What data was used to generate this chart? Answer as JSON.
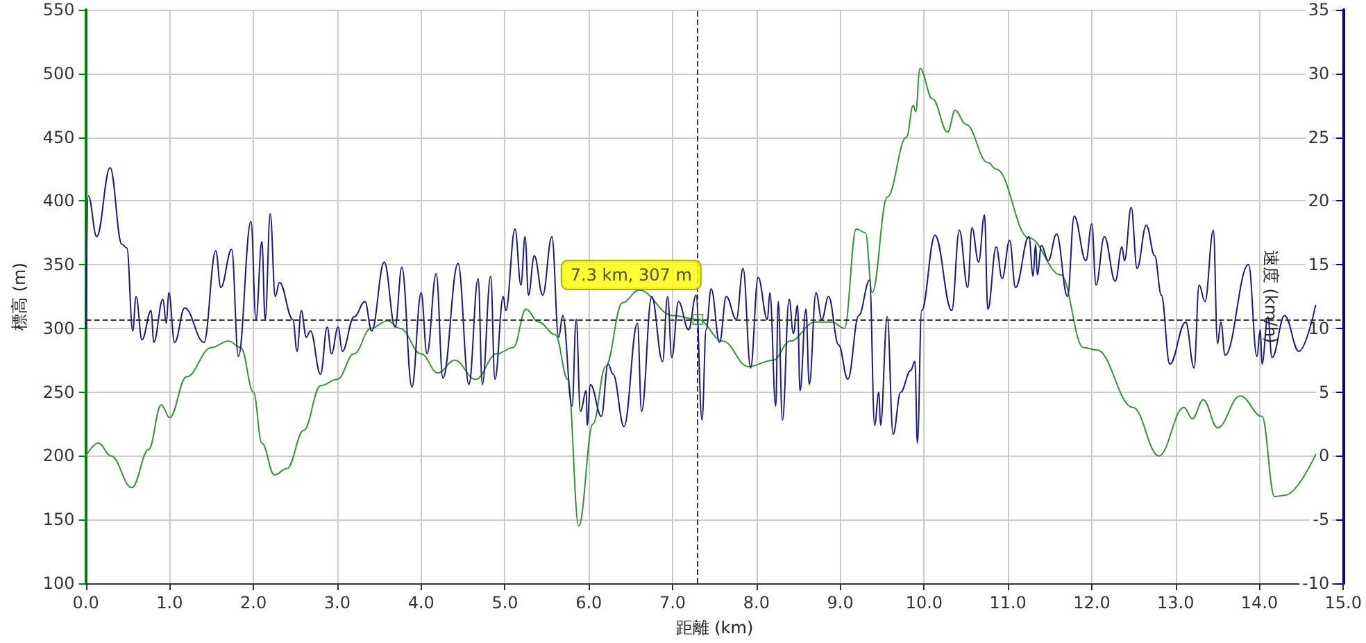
{
  "chart_data": {
    "type": "line",
    "xlabel": "距離 (km)",
    "ylabel": "標高 (m)",
    "y2label": "速度 (km/h)",
    "xlim": [
      0,
      15
    ],
    "xticks": [
      {
        "value": 0,
        "label": "0.0"
      },
      {
        "value": 1,
        "label": "1.0"
      },
      {
        "value": 2,
        "label": "2.0"
      },
      {
        "value": 3,
        "label": "3.0"
      },
      {
        "value": 4,
        "label": "4.0"
      },
      {
        "value": 5,
        "label": "5.0"
      },
      {
        "value": 6,
        "label": "6.0"
      },
      {
        "value": 7,
        "label": "7.0"
      },
      {
        "value": 8,
        "label": "8.0"
      },
      {
        "value": 9,
        "label": "9.0"
      },
      {
        "value": 10,
        "label": "10.0"
      },
      {
        "value": 11,
        "label": "11.0"
      },
      {
        "value": 12,
        "label": "12.0"
      },
      {
        "value": 13,
        "label": "13.0"
      },
      {
        "value": 14,
        "label": "14.0"
      },
      {
        "value": 15,
        "label": "15.0"
      }
    ],
    "ylim": [
      100,
      550
    ],
    "yticks": [
      100,
      150,
      200,
      250,
      300,
      350,
      400,
      450,
      500,
      550
    ],
    "y2lim": [
      -10,
      35
    ],
    "y2ticks": [
      -10,
      -5,
      0,
      5,
      10,
      15,
      20,
      25,
      30,
      35
    ],
    "grid": true,
    "marker": "none",
    "line_style": "solid",
    "ref_lines": [
      {
        "axis": "x",
        "value": 7.3,
        "color": "#333333",
        "line_style": "dashed"
      },
      {
        "axis": "y",
        "value": 307,
        "color": "#333333",
        "line_style": "dashed"
      }
    ],
    "annotations": [
      {
        "text": "7.3 km, 307 m",
        "x": 7.3,
        "y": 307
      }
    ],
    "series": [
      {
        "color": "#3d8f3d",
        "x": [
          0,
          0.15,
          0.3,
          0.55,
          0.75,
          0.9,
          1.0,
          1.2,
          1.5,
          1.7,
          1.85,
          2.0,
          2.1,
          2.25,
          2.4,
          2.6,
          2.8,
          3.0,
          3.2,
          3.4,
          3.6,
          3.75,
          4.0,
          4.2,
          4.4,
          4.65,
          4.9,
          5.1,
          5.25,
          5.4,
          5.6,
          5.75,
          5.88,
          6.05,
          6.2,
          6.4,
          6.6,
          7.0,
          7.3,
          7.6,
          7.9,
          8.2,
          8.4,
          8.7,
          8.9,
          9.05,
          9.19,
          9.3,
          9.38,
          9.56,
          9.79,
          9.87,
          9.9,
          9.95,
          10.1,
          10.28,
          10.37,
          10.5,
          10.76,
          10.86,
          11.25,
          11.63,
          11.9,
          12.06,
          12.49,
          12.8,
          13.1,
          13.2,
          13.33,
          13.5,
          13.77,
          14.03,
          14.18,
          14.3,
          14.67
        ],
        "values": [
          200,
          210,
          200,
          175,
          205,
          240,
          230,
          262,
          285,
          290,
          285,
          250,
          210,
          185,
          190,
          220,
          255,
          260,
          280,
          300,
          306,
          300,
          280,
          265,
          275,
          260,
          280,
          285,
          315,
          305,
          295,
          260,
          145,
          225,
          270,
          320,
          330,
          310,
          307,
          290,
          270,
          275,
          290,
          305,
          305,
          300,
          378,
          375,
          328,
          403,
          450,
          475,
          470,
          504,
          480,
          454,
          471,
          460,
          430,
          425,
          371,
          342,
          285,
          283,
          238,
          200,
          238,
          229,
          244,
          222,
          247,
          231,
          168,
          169,
          201
        ]
      },
      {
        "axis": "y2",
        "color": "#1c1c78",
        "x": [
          0,
          0.03,
          0.13,
          0.29,
          0.43,
          0.49,
          0.56,
          0.6,
          0.67,
          0.78,
          0.81,
          0.92,
          0.96,
          0.99,
          1.06,
          1.18,
          1.41,
          1.55,
          1.61,
          1.74,
          1.82,
          1.97,
          2.03,
          2.1,
          2.14,
          2.2,
          2.26,
          2.31,
          2.47,
          2.52,
          2.57,
          2.63,
          2.68,
          2.8,
          2.88,
          2.93,
          3.01,
          3.06,
          3.2,
          3.33,
          3.41,
          3.56,
          3.69,
          3.77,
          3.89,
          4.0,
          4.07,
          4.18,
          4.26,
          4.44,
          4.57,
          4.68,
          4.73,
          4.83,
          4.88,
          4.98,
          5.01,
          5.12,
          5.19,
          5.24,
          5.28,
          5.35,
          5.45,
          5.56,
          5.64,
          5.69,
          5.8,
          5.85,
          5.9,
          5.97,
          5.98,
          6.02,
          6.15,
          6.23,
          6.29,
          6.42,
          6.58,
          6.63,
          6.75,
          6.88,
          6.94,
          6.99,
          7.07,
          7.19,
          7.28,
          7.35,
          7.4,
          7.46,
          7.56,
          7.64,
          7.76,
          7.84,
          7.93,
          8.02,
          8.13,
          8.16,
          8.23,
          8.26,
          8.31,
          8.39,
          8.44,
          8.49,
          8.52,
          8.59,
          8.63,
          8.71,
          8.78,
          8.86,
          8.98,
          9.09,
          9.22,
          9.35,
          9.41,
          9.46,
          9.48,
          9.56,
          9.63,
          9.72,
          9.84,
          9.89,
          9.92,
          9.97,
          10.13,
          10.33,
          10.42,
          10.52,
          10.57,
          10.65,
          10.72,
          10.76,
          10.86,
          10.93,
          11.02,
          11.09,
          11.25,
          11.3,
          11.33,
          11.35,
          11.4,
          11.48,
          11.58,
          11.71,
          11.79,
          11.93,
          12.0,
          12.05,
          12.15,
          12.28,
          12.36,
          12.39,
          12.47,
          12.54,
          12.65,
          12.75,
          12.83,
          12.93,
          13.12,
          13.22,
          13.28,
          13.35,
          13.45,
          13.5,
          13.54,
          13.59,
          13.87,
          13.97,
          14.01,
          14.03,
          14.1,
          14.15,
          14.3,
          14.47,
          14.67
        ],
        "values": [
          10,
          20.4,
          17.2,
          22.6,
          16.6,
          16.3,
          9.8,
          12.5,
          9.1,
          11.4,
          8.9,
          12.3,
          10.4,
          12.8,
          8.9,
          11.6,
          8.9,
          16.1,
          13.2,
          16.2,
          7.8,
          18.4,
          10.7,
          16.8,
          10.7,
          19.0,
          12.5,
          13.6,
          10.7,
          8.2,
          11.4,
          9.3,
          9.8,
          6.4,
          10.1,
          8.0,
          10.1,
          8.2,
          10.9,
          12.1,
          9.8,
          15.2,
          10.1,
          14.8,
          5.4,
          12.8,
          8.0,
          14.3,
          6.1,
          15.1,
          5.6,
          13.9,
          5.6,
          14.1,
          6.0,
          12.5,
          11.4,
          17.8,
          13.4,
          17.2,
          12.6,
          15.7,
          12.6,
          17.2,
          9.3,
          11.0,
          3.9,
          10.7,
          3.5,
          5.1,
          2.4,
          5.6,
          3.1,
          7.2,
          6.4,
          2.3,
          10.4,
          3.5,
          12.5,
          7.4,
          12.5,
          7.7,
          12.1,
          9.9,
          12.6,
          2.8,
          9.9,
          13.1,
          8.9,
          12.5,
          10.7,
          14.7,
          6.9,
          14.0,
          10.7,
          12.8,
          3.9,
          12.1,
          2.8,
          12.3,
          9.6,
          11.8,
          5.1,
          11.5,
          5.6,
          12.8,
          10.7,
          12.5,
          8.7,
          6.0,
          11.0,
          13.8,
          2.4,
          5.0,
          2.4,
          10.9,
          1.7,
          5.0,
          6.7,
          7.4,
          1.0,
          11.4,
          17.3,
          11.4,
          17.7,
          13.2,
          17.9,
          15.2,
          18.9,
          11.5,
          16.4,
          13.9,
          16.9,
          13.2,
          17.2,
          14.1,
          16.6,
          14.2,
          16.5,
          15.3,
          17.4,
          12.5,
          18.8,
          15.3,
          18.2,
          13.4,
          17.2,
          13.7,
          16.4,
          15.3,
          19.5,
          14.7,
          18.1,
          15.7,
          12.6,
          7.2,
          10.5,
          6.9,
          13.4,
          12.1,
          17.7,
          8.8,
          10.5,
          7.9,
          15.0,
          7.8,
          9.9,
          7.2,
          10.9,
          7.7,
          11.0,
          8.2,
          11.8
        ]
      }
    ]
  }
}
